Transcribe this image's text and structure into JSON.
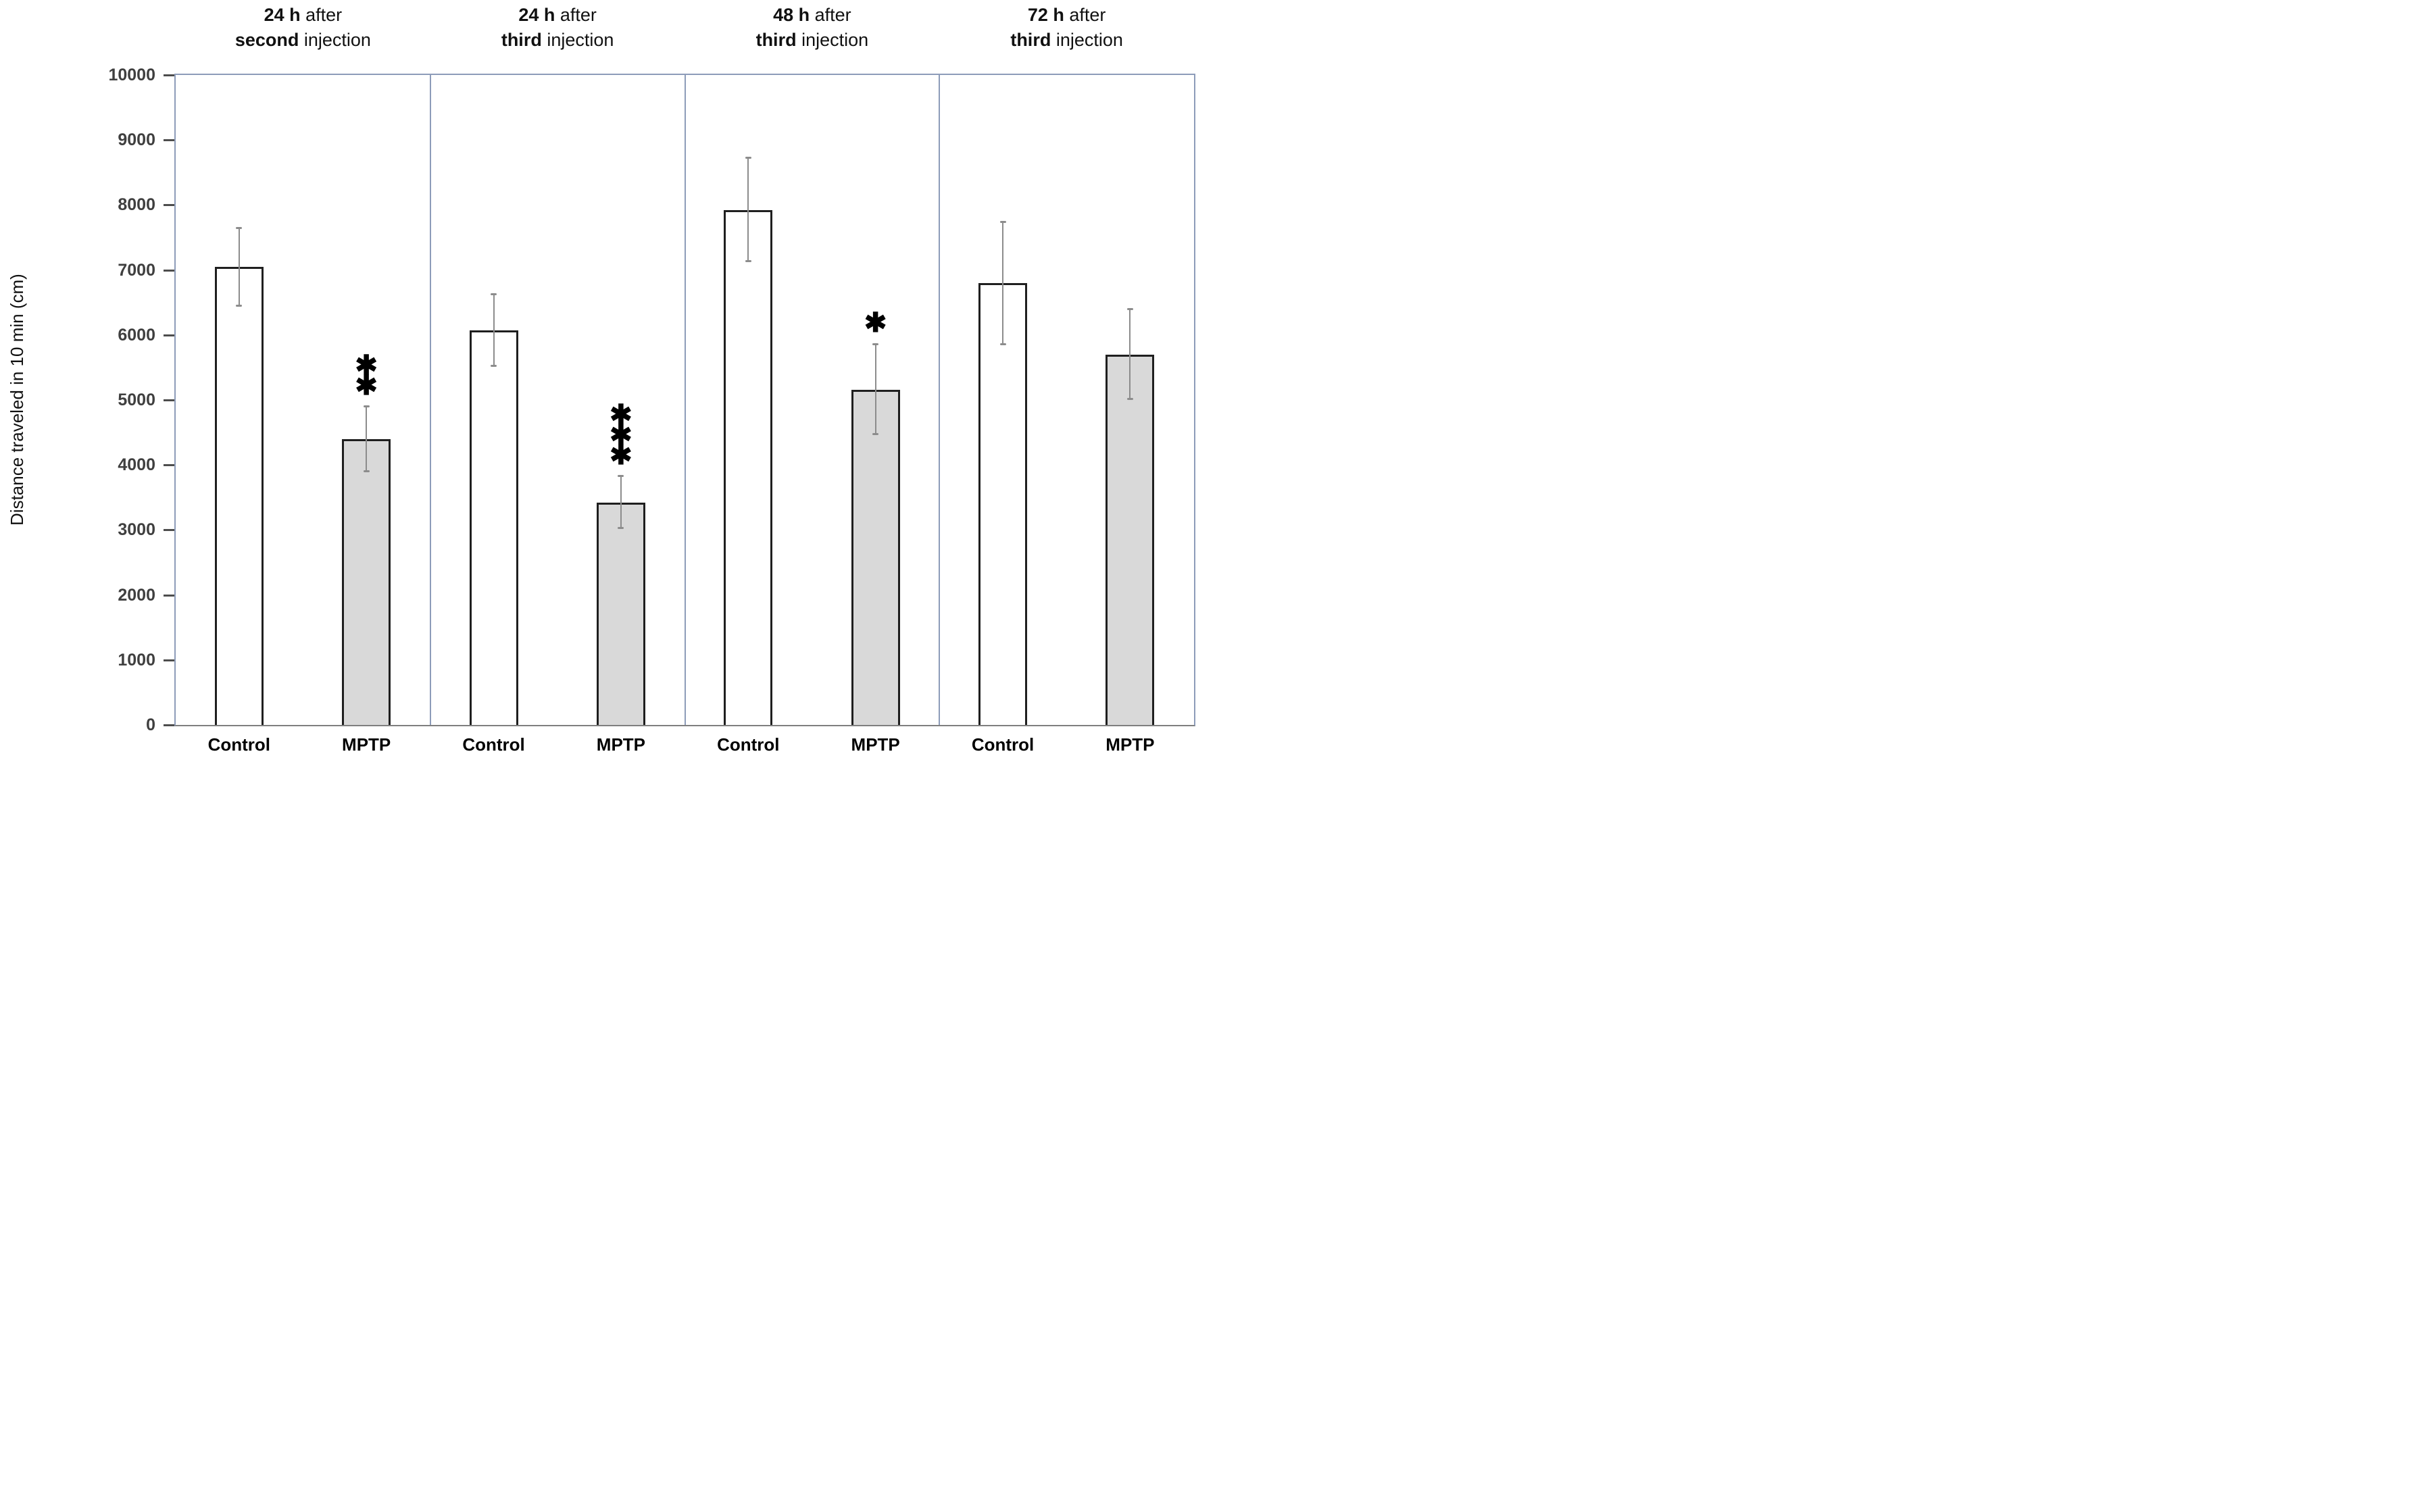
{
  "chart_data": {
    "type": "bar",
    "title": "",
    "xlabel": "",
    "ylabel": "Distance traveled in 10 min (cm)",
    "ylim": [
      0,
      10000
    ],
    "ytick_step": 1000,
    "grid": false,
    "legend_position": "none",
    "categories": [
      "24 h after second injection",
      "24 h after third injection",
      "48 h after third injection",
      "72  h after third injection"
    ],
    "category_title_lines": [
      {
        "line1_bold": "24 h",
        "line1_rest": " after",
        "line2_bold": "second",
        "line2_rest": " injection"
      },
      {
        "line1_bold": "24 h",
        "line1_rest": " after",
        "line2_bold": "third",
        "line2_rest": " injection"
      },
      {
        "line1_bold": "48 h",
        "line1_rest": " after",
        "line2_bold": "third",
        "line2_rest": " injection"
      },
      {
        "line1_bold": "72  h",
        "line1_rest": " after",
        "line2_bold": "third",
        "line2_rest": " injection"
      }
    ],
    "series": [
      {
        "name": "Control",
        "fill": "#ffffff",
        "values": [
          7050,
          6070,
          7920,
          6800
        ],
        "error_low": [
          6450,
          5530,
          7140,
          5860
        ],
        "error_high": [
          7650,
          6630,
          8730,
          7740
        ]
      },
      {
        "name": "MPTP",
        "fill": "#d9d9d9",
        "values": [
          4400,
          3420,
          5160,
          5700
        ],
        "error_low": [
          3900,
          3030,
          4470,
          5020
        ],
        "error_high": [
          4900,
          3830,
          5860,
          6400
        ]
      }
    ],
    "significance_markers": {
      "applies_to_series": "MPTP",
      "labels": [
        "✱✱",
        "✱✱✱",
        "✱",
        ""
      ]
    }
  },
  "style": {
    "panel_border_color": "#8d9cb9",
    "axis_line_color": "#7f7f7f",
    "bar_border_color": "#1f1f1f",
    "error_bar_color": "#8c8c8c",
    "tick_label_color": "#3f3f3f",
    "control_fill": "#ffffff",
    "mptp_fill": "#d9d9d9"
  }
}
